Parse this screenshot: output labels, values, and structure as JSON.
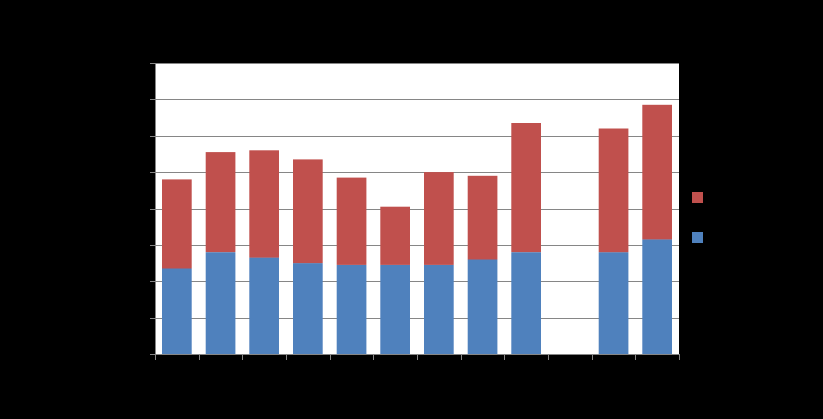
{
  "chart_data": {
    "type": "bar",
    "stacked": true,
    "categories": [
      "",
      "",
      "",
      "",
      "",
      "",
      "",
      "",
      "",
      "",
      "",
      ""
    ],
    "series": [
      {
        "color": "#4F81BD",
        "values": [
          23.5,
          28,
          26.5,
          25,
          24.5,
          24.5,
          24.5,
          26,
          28,
          0,
          28,
          31.5
        ]
      },
      {
        "color": "#C0504D",
        "values": [
          24.5,
          27.5,
          29.5,
          28.5,
          24,
          16,
          25.5,
          23,
          35.5,
          0,
          34,
          37
        ]
      }
    ],
    "ylim": [
      0,
      80
    ],
    "y_gridlines": [
      10,
      20,
      30,
      40,
      50,
      60,
      70,
      80
    ],
    "grid": true,
    "legend_position": "right",
    "plot_background": "#FFFFFF",
    "page_background": "#000000",
    "gridline_color": "#868686"
  }
}
